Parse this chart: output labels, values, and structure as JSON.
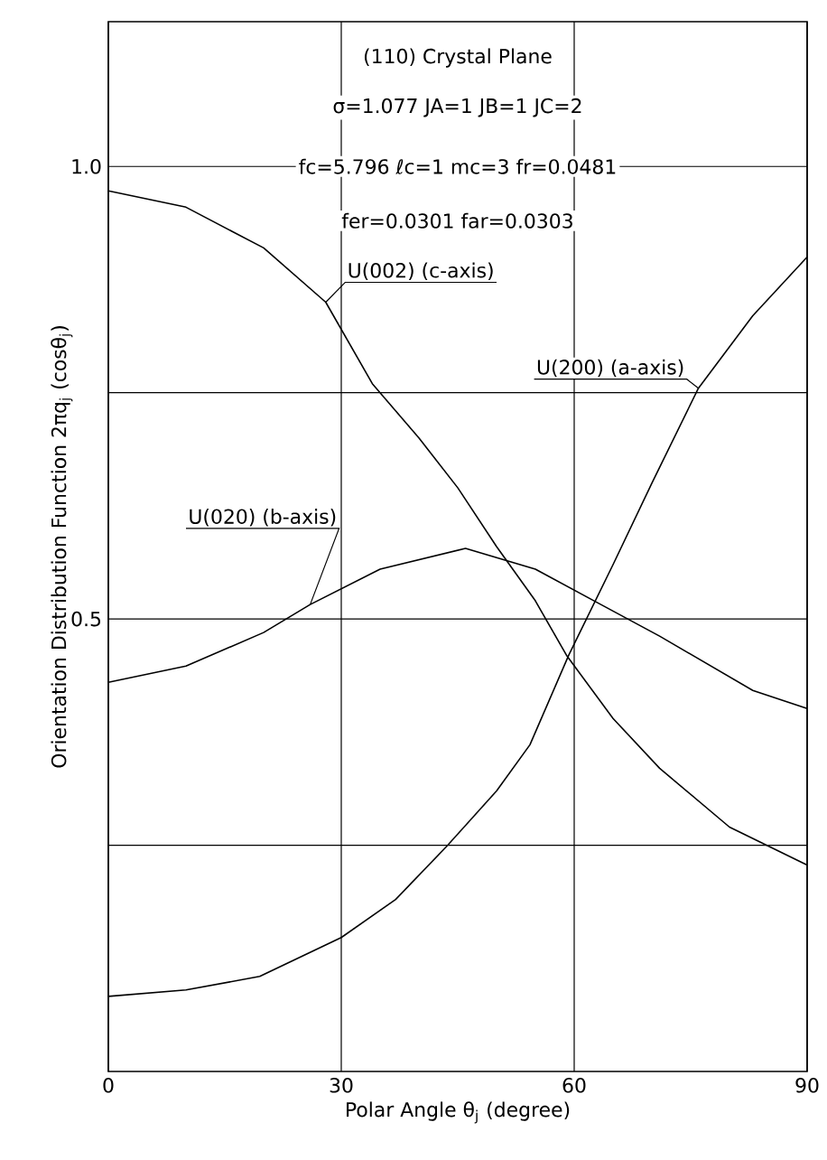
{
  "chart_data": {
    "type": "line",
    "xlabel": "Polar Angle θ$_{j}$ (degree)",
    "ylabel": "Orientation Distribution Function 2πq$_{j}$ (cosθ$_{j}$)",
    "annotations": [
      "(110) Crystal Plane",
      "σ=1.077  JA=1  JB=1  JC=2",
      "fc=5.796  ℓc=1  mc=3  fr=0.0481",
      "fer=0.0301   far=0.0303"
    ],
    "xlim": [
      0,
      90
    ],
    "ylim": [
      0,
      1.16
    ],
    "xticks": [
      0,
      30,
      60,
      90
    ],
    "yticks": [
      {
        "value": 0.25,
        "label": null
      },
      0.5,
      {
        "value": 0.75,
        "label": null
      },
      {
        "value": 1.0,
        "label": "1.0"
      }
    ],
    "grid": true,
    "marker": "none",
    "line_style": "solid",
    "series": [
      {
        "name": "U(002) (c-axis)",
        "color": "#000000",
        "x": [
          0,
          10,
          20,
          28,
          34,
          40,
          45,
          50,
          55,
          59,
          65,
          71,
          80,
          90
        ],
        "values": [
          0.973,
          0.955,
          0.91,
          0.85,
          0.76,
          0.7,
          0.645,
          0.58,
          0.52,
          0.46,
          0.39,
          0.335,
          0.27,
          0.228
        ]
      },
      {
        "name": "U(200) (a-axis)",
        "color": "#000000",
        "x": [
          0,
          10,
          19.5,
          30,
          37,
          43.5,
          50,
          54.3,
          59.3,
          65,
          70,
          76,
          83,
          90
        ],
        "values": [
          0.083,
          0.09,
          0.105,
          0.148,
          0.19,
          0.248,
          0.31,
          0.361,
          0.46,
          0.56,
          0.65,
          0.755,
          0.835,
          0.9
        ]
      },
      {
        "name": "U(020) (b-axis)",
        "color": "#000000",
        "x": [
          0,
          10,
          20,
          26,
          35,
          46,
          55,
          63,
          71,
          83,
          90
        ],
        "values": [
          0.43,
          0.448,
          0.485,
          0.516,
          0.555,
          0.578,
          0.555,
          0.518,
          0.481,
          0.421,
          0.401
        ]
      }
    ]
  }
}
